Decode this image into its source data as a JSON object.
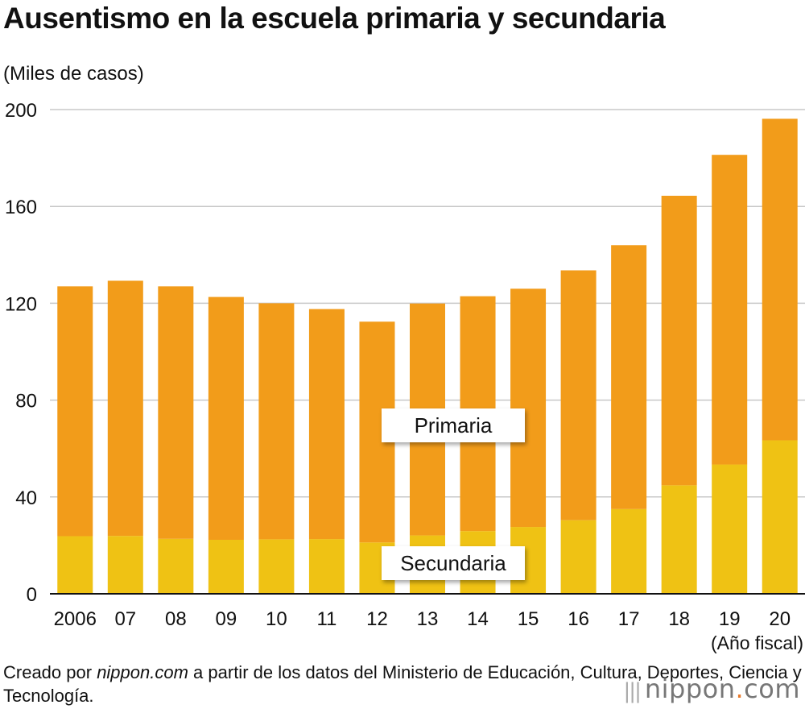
{
  "title": "Ausentismo en la escuela primaria y secundaria",
  "unit_label": "(Miles de casos)",
  "x_axis_title": "(Año fiscal)",
  "source_prefix": "Creado por ",
  "source_site": "nippon.com",
  "source_rest": " a partir de los datos del Ministerio de Educación, Cultura, Deportes, Ciencia y Tecnología.",
  "brand": {
    "name": "nippon",
    "dot": ".",
    "tld": "com"
  },
  "colors": {
    "primaria": "#F29C1A",
    "secundaria": "#EFC214",
    "grid": "#c8c8c8",
    "axis": "#111111"
  },
  "chart_data": {
    "type": "bar",
    "stacked": true,
    "title": "Ausentismo en la escuela primaria y secundaria",
    "ylabel": "(Miles de casos)",
    "xlabel": "(Año fiscal)",
    "ylim": [
      0,
      200
    ],
    "yticks": [
      0,
      40,
      80,
      120,
      160,
      200
    ],
    "grid": true,
    "categories": [
      "2006",
      "07",
      "08",
      "09",
      "10",
      "11",
      "12",
      "13",
      "14",
      "15",
      "16",
      "17",
      "18",
      "19",
      "20"
    ],
    "series": [
      {
        "name": "Secundaria",
        "values": [
          23.8,
          23.9,
          22.7,
          22.3,
          22.5,
          22.6,
          21.2,
          24.1,
          25.9,
          27.6,
          30.4,
          35.0,
          44.8,
          53.4,
          63.4
        ]
      },
      {
        "name": "Primaria",
        "values": [
          103.2,
          105.4,
          104.3,
          100.3,
          97.5,
          95.0,
          91.2,
          95.8,
          97.0,
          98.4,
          103.2,
          109.0,
          119.6,
          127.9,
          132.8
        ]
      }
    ],
    "totals": [
      127.0,
      129.3,
      127.0,
      122.6,
      120.0,
      117.6,
      112.4,
      119.9,
      122.9,
      126.0,
      133.6,
      144.0,
      164.4,
      181.3,
      196.2
    ],
    "legend": {
      "primaria": "Primaria",
      "secundaria": "Secundaria"
    }
  }
}
